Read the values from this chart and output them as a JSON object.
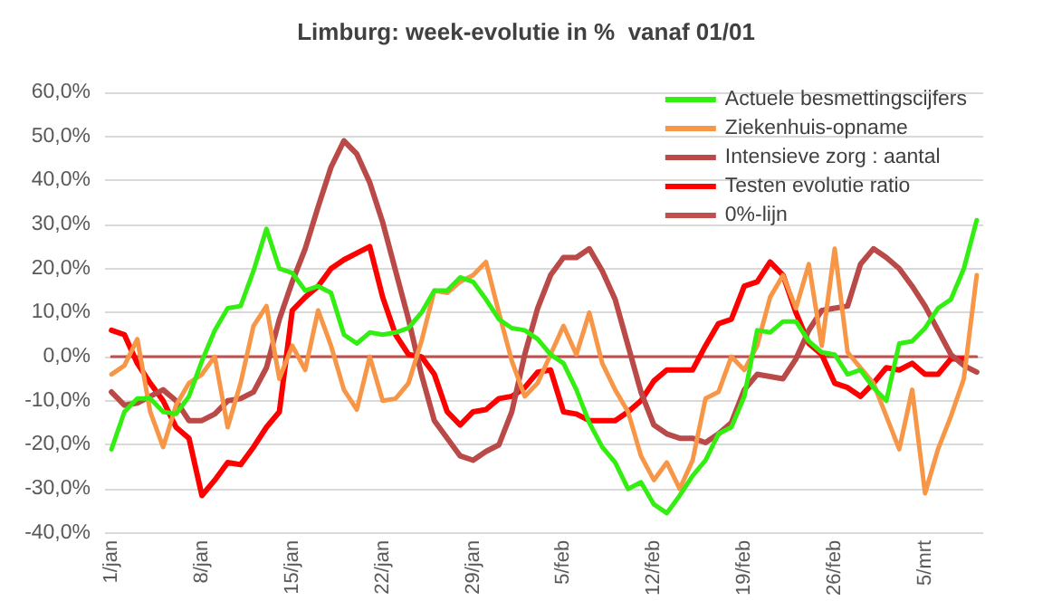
{
  "chart_data": {
    "type": "line",
    "title": "Limburg: week-evolutie in %  vanaf 01/01",
    "categories": [
      "1/jan",
      null,
      null,
      null,
      null,
      null,
      null,
      "8/jan",
      null,
      null,
      null,
      null,
      null,
      null,
      "15/jan",
      null,
      null,
      null,
      null,
      null,
      null,
      "22/jan",
      null,
      null,
      null,
      null,
      null,
      null,
      "29/jan",
      null,
      null,
      null,
      null,
      null,
      null,
      "5/feb",
      null,
      null,
      null,
      null,
      null,
      null,
      "12/feb",
      null,
      null,
      null,
      null,
      null,
      null,
      "19/feb",
      null,
      null,
      null,
      null,
      null,
      null,
      "26/feb",
      null,
      null,
      null,
      null,
      null,
      null,
      "5/mrt",
      null,
      null,
      null,
      null
    ],
    "series": [
      {
        "name": "Actuele besmettingscijfers",
        "color": "#33ee11",
        "values": [
          -21,
          -12.5,
          -9.5,
          -9.5,
          -12.5,
          -13,
          -9,
          -1,
          6,
          11,
          11.5,
          19.5,
          29,
          20,
          19,
          15,
          16,
          14.5,
          5,
          3,
          5.5,
          5,
          5.5,
          6.5,
          10,
          15,
          15,
          18,
          17,
          13,
          8.5,
          6.5,
          6,
          4,
          0.5,
          -1.5,
          -7.5,
          -15,
          -20.5,
          -24,
          -30,
          -28.5,
          -33.5,
          -35.5,
          -31.5,
          -27,
          -23.5,
          -17.5,
          -16,
          -9,
          6,
          5.5,
          8,
          8,
          3.5,
          1,
          0.5,
          -4,
          -3,
          -7,
          -10,
          3,
          3.5,
          6.5,
          11,
          13,
          20,
          31
        ]
      },
      {
        "name": "Ziekenhuis-opname",
        "color": "#f79646",
        "values": [
          -4,
          -2,
          4,
          -12.5,
          -20.5,
          -11,
          -6,
          -4,
          0,
          -16,
          -6,
          7,
          11.5,
          -5,
          2.5,
          -3,
          10.5,
          2.5,
          -7.5,
          -12,
          0,
          -10,
          -9.5,
          -6,
          3.5,
          15,
          14.5,
          17,
          18.5,
          21.5,
          10,
          -1,
          -9,
          -6,
          0.5,
          7,
          0.5,
          10,
          -1.5,
          -7.5,
          -12.5,
          -22.5,
          -28,
          -24,
          -30,
          -23.5,
          -9.5,
          -8,
          0,
          -3,
          2.5,
          13.5,
          18.5,
          11,
          21,
          2.5,
          24.5,
          1,
          -2.5,
          -6,
          -13.5,
          -21,
          -7.5,
          -31,
          -21,
          -13.5,
          -5,
          18.5
        ]
      },
      {
        "name": "Intensieve zorg : aantal",
        "color": "#b94a48",
        "values": [
          -8,
          -11,
          -10.5,
          -9,
          -7.5,
          -10,
          -14.5,
          -14.5,
          -13,
          -10,
          -9.5,
          -8,
          -2.5,
          8.5,
          17,
          24.5,
          34,
          43,
          49,
          46,
          39.5,
          30.5,
          19.5,
          8.5,
          -4,
          -14.5,
          -18.5,
          -22.5,
          -23.5,
          -21.5,
          -20,
          -12.5,
          0.5,
          11,
          18.5,
          22.5,
          22.5,
          24.5,
          19.5,
          13,
          2.5,
          -8,
          -15.5,
          -17.5,
          -18.5,
          -18.5,
          -19.5,
          -17.5,
          -15,
          -7.5,
          -4,
          -4.5,
          -5,
          -0.5,
          6,
          10.5,
          11,
          11.5,
          21,
          24.5,
          22.5,
          20,
          16,
          11.5,
          6,
          0.5,
          -2,
          -3.5
        ]
      },
      {
        "name": "Testen evolutie ratio",
        "color": "#ff0000",
        "values": [
          6,
          5,
          -1.5,
          -6,
          -10,
          -16,
          -18.5,
          -31.5,
          -28,
          -24,
          -24.5,
          -20.5,
          -16,
          -12.5,
          10.5,
          13.5,
          16,
          20,
          22,
          23.5,
          25,
          13.5,
          5,
          0.5,
          0,
          -4,
          -12.5,
          -15.5,
          -12.5,
          -12,
          -9.5,
          -9,
          -7,
          -3.5,
          -3,
          -12.5,
          -13,
          -14.5,
          -14.5,
          -14.5,
          -12.5,
          -10,
          -5.5,
          -3,
          -3,
          -3,
          2.5,
          7.5,
          8.5,
          16,
          17,
          21.5,
          18.5,
          10,
          3,
          0.5,
          -6,
          -7,
          -9,
          -6,
          -2.5,
          -3,
          -1.5,
          -4,
          -4,
          -0.5,
          -0.5,
          null
        ]
      },
      {
        "name": "0%-lijn",
        "color": "#c0504d",
        "values": [
          0,
          0,
          0,
          0,
          0,
          0,
          0,
          0,
          0,
          0,
          0,
          0,
          0,
          0,
          0,
          0,
          0,
          0,
          0,
          0,
          0,
          0,
          0,
          0,
          0,
          0,
          0,
          0,
          0,
          0,
          0,
          0,
          0,
          0,
          0,
          0,
          0,
          0,
          0,
          0,
          0,
          0,
          0,
          0,
          0,
          0,
          0,
          0,
          0,
          0,
          0,
          0,
          0,
          0,
          0,
          0,
          0,
          0,
          0,
          0,
          0,
          0,
          0,
          0,
          0,
          0,
          0,
          0
        ]
      }
    ],
    "ylim": [
      -40,
      60
    ],
    "yticks": [
      {
        "value": -40,
        "label": "-40,0%"
      },
      {
        "value": -30,
        "label": "-30,0%"
      },
      {
        "value": -20,
        "label": "-20,0%"
      },
      {
        "value": -10,
        "label": "-10,0%"
      },
      {
        "value": 0,
        "label": "0,0%"
      },
      {
        "value": 10,
        "label": "10,0%"
      },
      {
        "value": 20,
        "label": "20,0%"
      },
      {
        "value": 30,
        "label": "30,0%"
      },
      {
        "value": 40,
        "label": "40,0%"
      },
      {
        "value": 50,
        "label": "50,0%"
      },
      {
        "value": 60,
        "label": "60,0%"
      }
    ],
    "grid": "y",
    "legend": "top right",
    "marker": "none",
    "line_style": "solid"
  }
}
